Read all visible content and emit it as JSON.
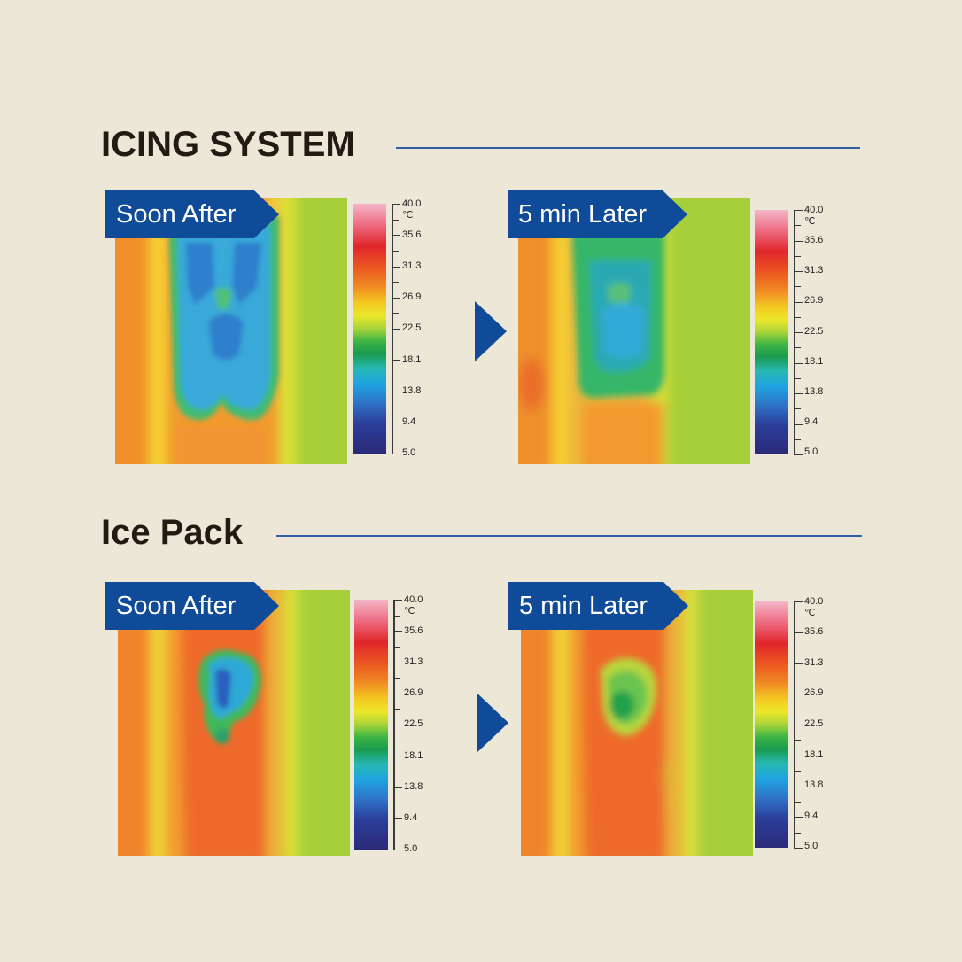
{
  "sections": [
    {
      "title": "ICING SYSTEM",
      "panels": [
        {
          "label": "Soon After",
          "image": "thermal-image-icing-soon-after"
        },
        {
          "label": "5 min Later",
          "image": "thermal-image-icing-5-min-later"
        }
      ]
    },
    {
      "title": "Ice Pack",
      "panels": [
        {
          "label": "Soon After",
          "image": "thermal-image-icepack-soon-after"
        },
        {
          "label": "5 min Later",
          "image": "thermal-image-icepack-5-min-later"
        }
      ]
    }
  ],
  "scale": {
    "unit": "℃",
    "ticks": [
      "40.0",
      "35.6",
      "31.3",
      "26.9",
      "22.5",
      "18.1",
      "13.8",
      "9.4",
      "5.0"
    ]
  },
  "icons": {
    "next": "triangle-right-icon"
  },
  "colors": {
    "accent": "#0f4b98",
    "rule": "#2f5ea4",
    "background": "#ece7d7"
  }
}
